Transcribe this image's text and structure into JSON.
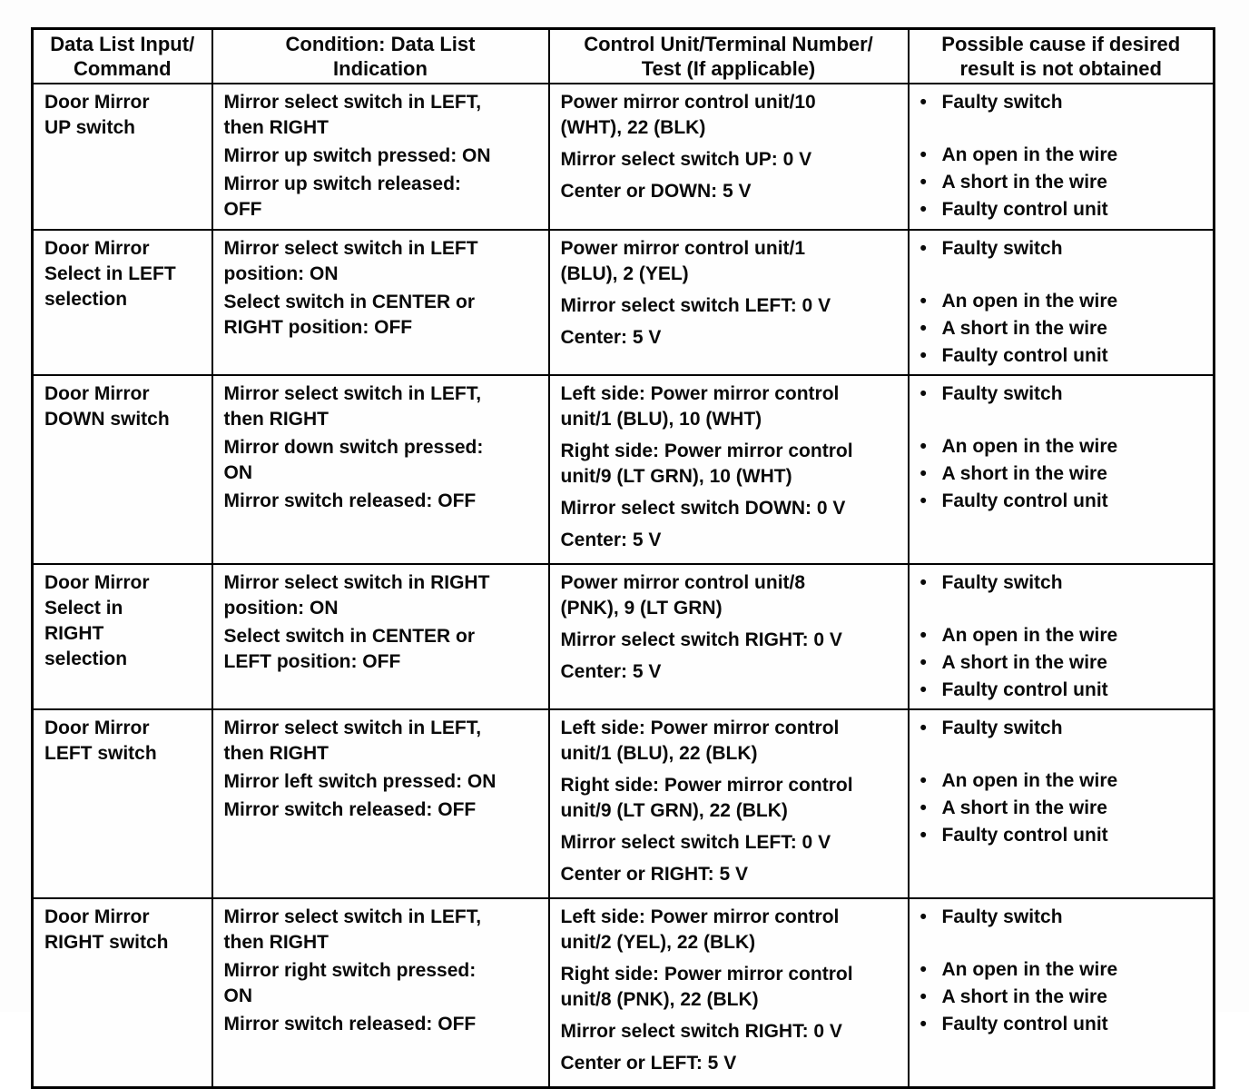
{
  "table": {
    "bullet": "•",
    "headers": [
      "Data List Input/\nCommand",
      "Condition: Data List\nIndication",
      "Control Unit/Terminal Number/\nTest (If applicable)",
      "Possible cause if desired\nresult is not obtained"
    ],
    "rows": [
      {
        "input": "Door Mirror\nUP switch",
        "conditions": [
          "Mirror select switch in LEFT,\nthen RIGHT",
          "Mirror up switch pressed: ON",
          "Mirror up switch released:\nOFF"
        ],
        "tests": [
          "Power mirror control unit/10\n(WHT), 22 (BLK)",
          "Mirror select switch UP: 0 V",
          "Center or DOWN: 5 V"
        ],
        "causes_primary": [
          "Faulty switch"
        ],
        "causes_secondary": [
          "An open in the wire",
          "A short in the wire",
          "Faulty control unit"
        ]
      },
      {
        "input": "Door Mirror\nSelect in LEFT\nselection",
        "conditions": [
          "Mirror select switch in LEFT\nposition: ON",
          "Select switch in CENTER or\nRIGHT position: OFF"
        ],
        "tests": [
          "Power mirror control unit/1\n(BLU), 2 (YEL)",
          "Mirror select switch LEFT: 0 V",
          "Center: 5 V"
        ],
        "causes_primary": [
          "Faulty switch"
        ],
        "causes_secondary": [
          "An open in the wire",
          "A short in the wire",
          "Faulty control unit"
        ]
      },
      {
        "input": "Door Mirror\nDOWN switch",
        "conditions": [
          "Mirror select switch in LEFT,\nthen RIGHT",
          "Mirror down switch pressed:\nON",
          "Mirror switch released: OFF"
        ],
        "tests": [
          "Left side: Power mirror control\nunit/1 (BLU), 10 (WHT)",
          "Right side: Power mirror control\nunit/9 (LT GRN), 10 (WHT)",
          "Mirror select switch DOWN: 0 V",
          "Center: 5 V"
        ],
        "causes_primary": [
          "Faulty switch"
        ],
        "causes_secondary": [
          "An open in the wire",
          "A short in the wire",
          "Faulty control unit"
        ]
      },
      {
        "input": "Door Mirror\nSelect in\nRIGHT\nselection",
        "conditions": [
          "Mirror select switch in RIGHT\nposition: ON",
          "Select switch in CENTER or\nLEFT position: OFF"
        ],
        "tests": [
          "Power mirror control unit/8\n(PNK), 9 (LT GRN)",
          "Mirror select switch RIGHT: 0 V",
          "Center: 5 V"
        ],
        "causes_primary": [
          "Faulty switch"
        ],
        "causes_secondary": [
          "An open in the wire",
          "A short in the wire",
          "Faulty control unit"
        ]
      },
      {
        "input": "Door Mirror\nLEFT switch",
        "conditions": [
          "Mirror select switch in LEFT,\nthen RIGHT",
          "Mirror left switch pressed: ON",
          "Mirror switch released: OFF"
        ],
        "tests": [
          "Left side: Power mirror control\nunit/1 (BLU), 22 (BLK)",
          "Right side: Power mirror control\nunit/9 (LT GRN), 22 (BLK)",
          "Mirror select switch LEFT: 0 V",
          "Center or RIGHT: 5 V"
        ],
        "causes_primary": [
          "Faulty switch"
        ],
        "causes_secondary": [
          "An open in the wire",
          "A short in the wire",
          "Faulty control unit"
        ]
      },
      {
        "input": "Door Mirror\nRIGHT switch",
        "conditions": [
          "Mirror select switch in LEFT,\nthen RIGHT",
          "Mirror right switch pressed:\nON",
          "Mirror switch released: OFF"
        ],
        "tests": [
          "Left side: Power mirror control\nunit/2 (YEL), 22 (BLK)",
          "Right side: Power mirror control\nunit/8 (PNK), 22 (BLK)",
          "Mirror select switch RIGHT: 0 V",
          "Center or LEFT: 5 V"
        ],
        "causes_primary": [
          "Faulty switch"
        ],
        "causes_secondary": [
          "An open in the wire",
          "A short in the wire",
          "Faulty control unit"
        ]
      }
    ]
  }
}
